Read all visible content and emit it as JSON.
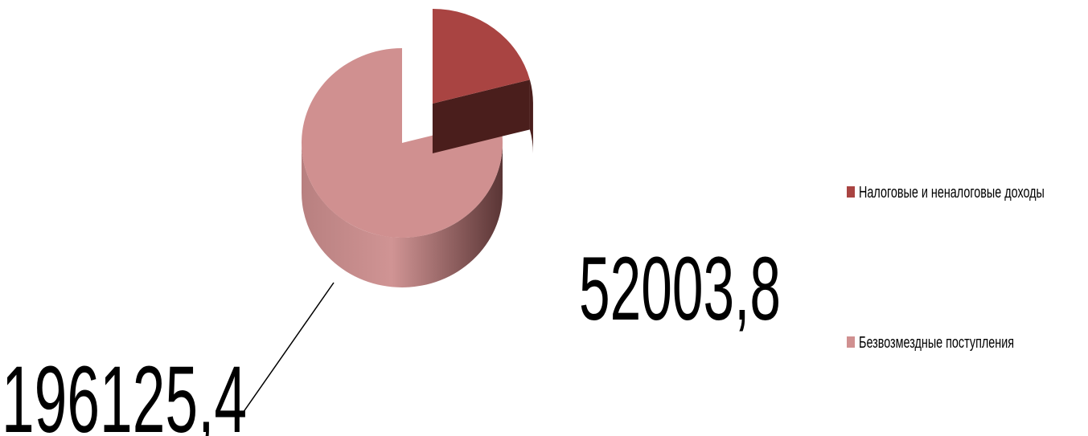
{
  "chart_data": {
    "type": "pie",
    "categories": [
      "Налоговые и неналоговые доходы",
      "Безвозмездные поступления"
    ],
    "values": [
      52003.8,
      196125.4
    ],
    "value_labels": [
      "52003,8",
      "196125,4"
    ],
    "colors": [
      "#a94442",
      "#d09090"
    ],
    "legend": "right"
  }
}
